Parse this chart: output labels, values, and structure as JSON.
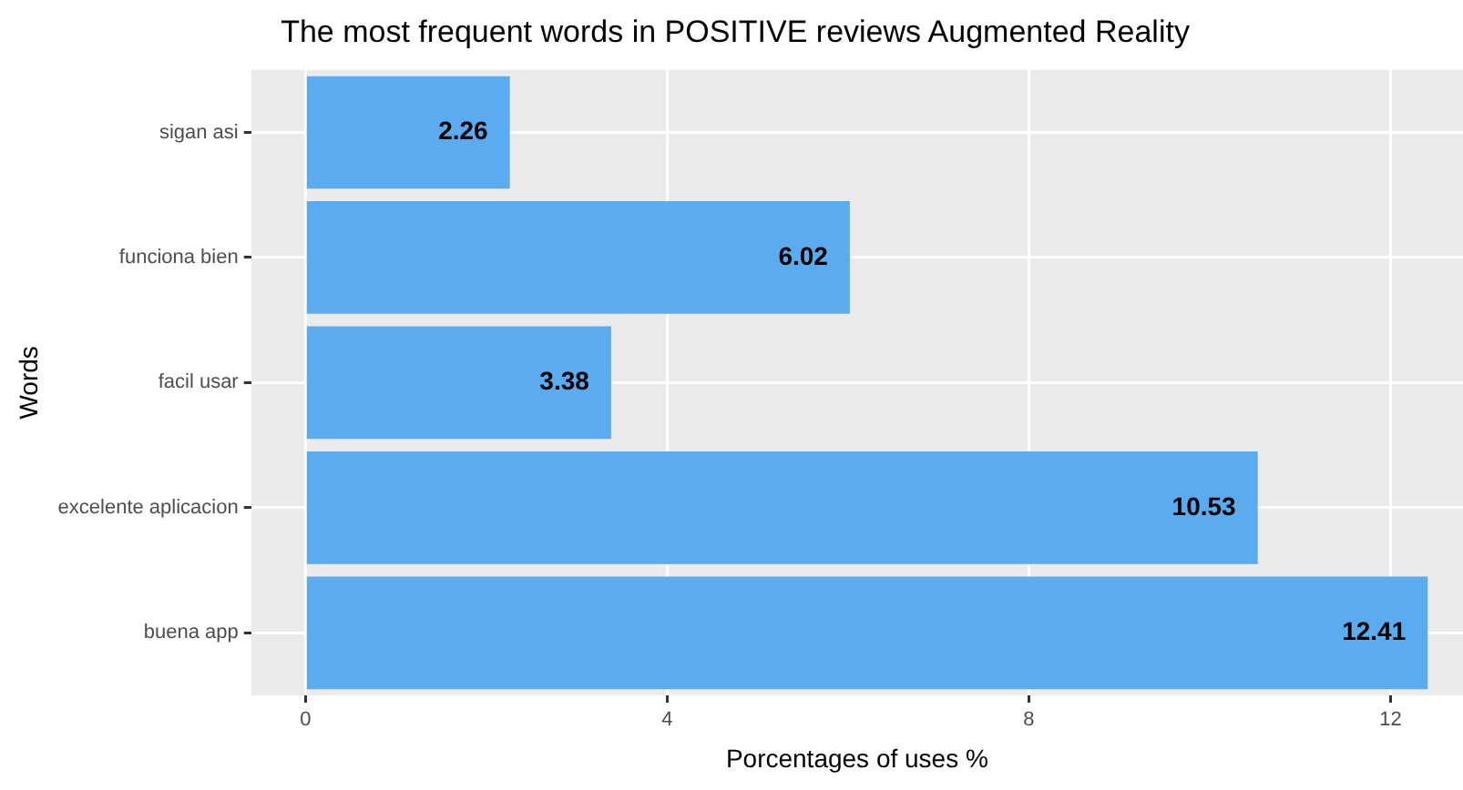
{
  "chart_data": {
    "type": "bar",
    "orientation": "horizontal",
    "title": "The most frequent words in POSITIVE reviews Augmented Reality",
    "xlabel": "Porcentages of uses %",
    "ylabel": "Words",
    "categories": [
      "sigan asi",
      "funciona bien",
      "facil usar",
      "excelente aplicacion",
      "buena app"
    ],
    "values": [
      2.26,
      6.02,
      3.38,
      10.53,
      12.41
    ],
    "color": "#5aabef",
    "xlim": [
      -0.6,
      12.8
    ],
    "xticks": [
      0,
      4,
      8,
      12
    ],
    "grid": true,
    "data_labels": true
  }
}
